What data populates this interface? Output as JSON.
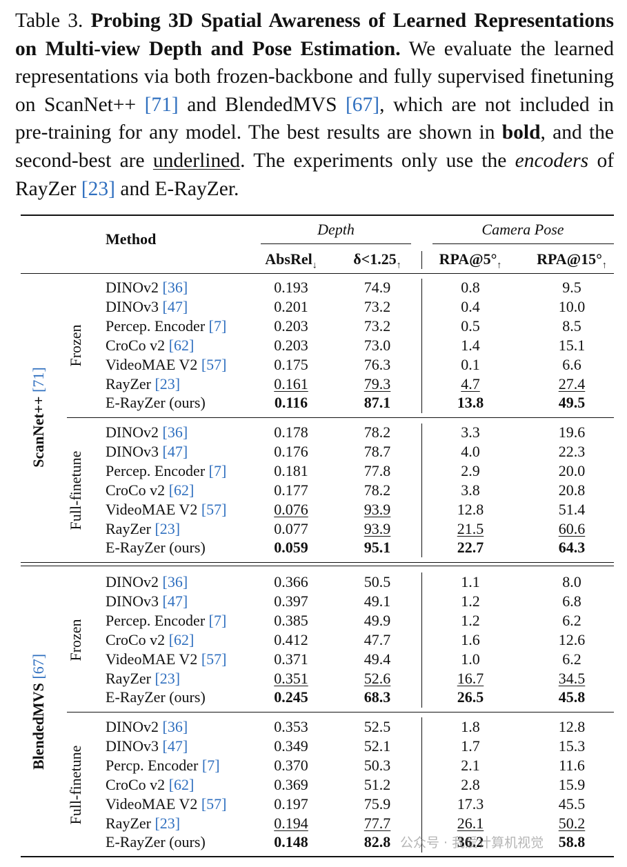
{
  "caption": {
    "label": "Table 3.",
    "title": "Probing 3D Spatial Awareness of Learned Representations on Multi-view Depth and Pose Estimation.",
    "text1": "We evaluate the learned representations via both frozen-backbone and fully supervised finetuning on ScanNet++",
    "cite1": "[71]",
    "text2": "and BlendedMVS",
    "cite2": "[67]",
    "text3": ", which are not included in pre-training for any model. The best results are shown in",
    "bold_word": "bold",
    "text4": ", and the second-best are",
    "underline_word": "underlined",
    "text5": ". The experiments only use the",
    "italic_word": "encoders",
    "text6": "of RayZer",
    "cite3": "[23]",
    "text7": "and E-RayZer."
  },
  "header": {
    "method": "Method",
    "depth": "Depth",
    "camera_pose": "Camera Pose",
    "absrel": "AbsRel",
    "absrel_arrow": "↓",
    "delta": "δ<1.25",
    "delta_arrow": "↑",
    "rpa5": "RPA@5°",
    "rpa5_arrow": "↑",
    "rpa15": "RPA@15°",
    "rpa15_arrow": "↑"
  },
  "datasets": [
    {
      "name": "ScanNet++",
      "cite": "[71]",
      "blocks": [
        {
          "setting": "Frozen",
          "rows": [
            {
              "m": "DINOv2",
              "cite": "[36]",
              "v": [
                "0.193",
                "74.9",
                "0.8",
                "9.5"
              ],
              "fmt": [
                "",
                "",
                "",
                ""
              ]
            },
            {
              "m": "DINOv3",
              "cite": "[47]",
              "v": [
                "0.201",
                "73.2",
                "0.4",
                "10.0"
              ],
              "fmt": [
                "",
                "",
                "",
                ""
              ]
            },
            {
              "m": "Percep. Encoder",
              "cite": "[7]",
              "v": [
                "0.203",
                "73.2",
                "0.5",
                "8.5"
              ],
              "fmt": [
                "",
                "",
                "",
                ""
              ]
            },
            {
              "m": "CroCo v2",
              "cite": "[62]",
              "v": [
                "0.203",
                "73.0",
                "1.4",
                "15.1"
              ],
              "fmt": [
                "",
                "",
                "",
                ""
              ]
            },
            {
              "m": "VideoMAE V2",
              "cite": "[57]",
              "v": [
                "0.175",
                "76.3",
                "0.1",
                "6.6"
              ],
              "fmt": [
                "",
                "",
                "",
                ""
              ]
            },
            {
              "m": "RayZer",
              "cite": "[23]",
              "v": [
                "0.161",
                "79.3",
                "4.7",
                "27.4"
              ],
              "fmt": [
                "u",
                "u",
                "u",
                "u"
              ]
            },
            {
              "m": "E-RayZer (ours)",
              "cite": "",
              "v": [
                "0.116",
                "87.1",
                "13.8",
                "49.5"
              ],
              "fmt": [
                "b",
                "b",
                "b",
                "b"
              ]
            }
          ]
        },
        {
          "setting": "Full-finetune",
          "rows": [
            {
              "m": "DINOv2",
              "cite": "[36]",
              "v": [
                "0.178",
                "78.2",
                "3.3",
                "19.6"
              ],
              "fmt": [
                "",
                "",
                "",
                ""
              ]
            },
            {
              "m": "DINOv3",
              "cite": "[47]",
              "v": [
                "0.176",
                "78.7",
                "4.0",
                "22.3"
              ],
              "fmt": [
                "",
                "",
                "",
                ""
              ]
            },
            {
              "m": "Percep. Encoder",
              "cite": "[7]",
              "v": [
                "0.181",
                "77.8",
                "2.9",
                "20.0"
              ],
              "fmt": [
                "",
                "",
                "",
                ""
              ]
            },
            {
              "m": "CroCo v2",
              "cite": "[62]",
              "v": [
                "0.177",
                "78.2",
                "3.8",
                "20.8"
              ],
              "fmt": [
                "",
                "",
                "",
                ""
              ]
            },
            {
              "m": "VideoMAE V2",
              "cite": "[57]",
              "v": [
                "0.076",
                "93.9",
                "12.8",
                "51.4"
              ],
              "fmt": [
                "u",
                "u",
                "",
                ""
              ]
            },
            {
              "m": "RayZer",
              "cite": "[23]",
              "v": [
                "0.077",
                "93.9",
                "21.5",
                "60.6"
              ],
              "fmt": [
                "",
                "u",
                "u",
                "u"
              ]
            },
            {
              "m": "E-RayZer (ours)",
              "cite": "",
              "v": [
                "0.059",
                "95.1",
                "22.7",
                "64.3"
              ],
              "fmt": [
                "b",
                "b",
                "b",
                "b"
              ]
            }
          ]
        }
      ]
    },
    {
      "name": "BlendedMVS",
      "cite": "[67]",
      "blocks": [
        {
          "setting": "Frozen",
          "rows": [
            {
              "m": "DINOv2",
              "cite": "[36]",
              "v": [
                "0.366",
                "50.5",
                "1.1",
                "8.0"
              ],
              "fmt": [
                "",
                "",
                "",
                ""
              ]
            },
            {
              "m": "DINOv3",
              "cite": "[47]",
              "v": [
                "0.397",
                "49.1",
                "1.2",
                "6.8"
              ],
              "fmt": [
                "",
                "",
                "",
                ""
              ]
            },
            {
              "m": "Percep. Encoder",
              "cite": "[7]",
              "v": [
                "0.385",
                "49.9",
                "1.2",
                "6.2"
              ],
              "fmt": [
                "",
                "",
                "",
                ""
              ]
            },
            {
              "m": "CroCo v2",
              "cite": "[62]",
              "v": [
                "0.412",
                "47.7",
                "1.6",
                "12.6"
              ],
              "fmt": [
                "",
                "",
                "",
                ""
              ]
            },
            {
              "m": "VideoMAE V2",
              "cite": "[57]",
              "v": [
                "0.371",
                "49.4",
                "1.0",
                "6.2"
              ],
              "fmt": [
                "",
                "",
                "",
                ""
              ]
            },
            {
              "m": "RayZer",
              "cite": "[23]",
              "v": [
                "0.351",
                "52.6",
                "16.7",
                "34.5"
              ],
              "fmt": [
                "u",
                "u",
                "u",
                "u"
              ]
            },
            {
              "m": "E-RayZer (ours)",
              "cite": "",
              "v": [
                "0.245",
                "68.3",
                "26.5",
                "45.8"
              ],
              "fmt": [
                "b",
                "b",
                "b",
                "b"
              ]
            }
          ]
        },
        {
          "setting": "Full-finetune",
          "rows": [
            {
              "m": "DINOv2",
              "cite": "[36]",
              "v": [
                "0.353",
                "52.5",
                "1.8",
                "12.8"
              ],
              "fmt": [
                "",
                "",
                "",
                ""
              ]
            },
            {
              "m": "DINOv3",
              "cite": "[47]",
              "v": [
                "0.349",
                "52.1",
                "1.7",
                "15.3"
              ],
              "fmt": [
                "",
                "",
                "",
                ""
              ]
            },
            {
              "m": "Percp. Encoder",
              "cite": "[7]",
              "v": [
                "0.370",
                "50.3",
                "2.1",
                "11.6"
              ],
              "fmt": [
                "",
                "",
                "",
                ""
              ]
            },
            {
              "m": "CroCo v2",
              "cite": "[62]",
              "v": [
                "0.369",
                "51.2",
                "2.8",
                "15.9"
              ],
              "fmt": [
                "",
                "",
                "",
                ""
              ]
            },
            {
              "m": "VideoMAE V2",
              "cite": "[57]",
              "v": [
                "0.197",
                "75.9",
                "17.3",
                "45.5"
              ],
              "fmt": [
                "",
                "",
                "",
                ""
              ]
            },
            {
              "m": "RayZer",
              "cite": "[23]",
              "v": [
                "0.194",
                "77.7",
                "26.1",
                "50.2"
              ],
              "fmt": [
                "u",
                "u",
                "u",
                "u"
              ]
            },
            {
              "m": "E-RayZer (ours)",
              "cite": "",
              "v": [
                "0.148",
                "82.8",
                "36.2",
                "58.8"
              ],
              "fmt": [
                "b",
                "b",
                "b",
                "b"
              ]
            }
          ]
        }
      ]
    }
  ],
  "watermark": "公众号 · 我爱计算机视觉"
}
